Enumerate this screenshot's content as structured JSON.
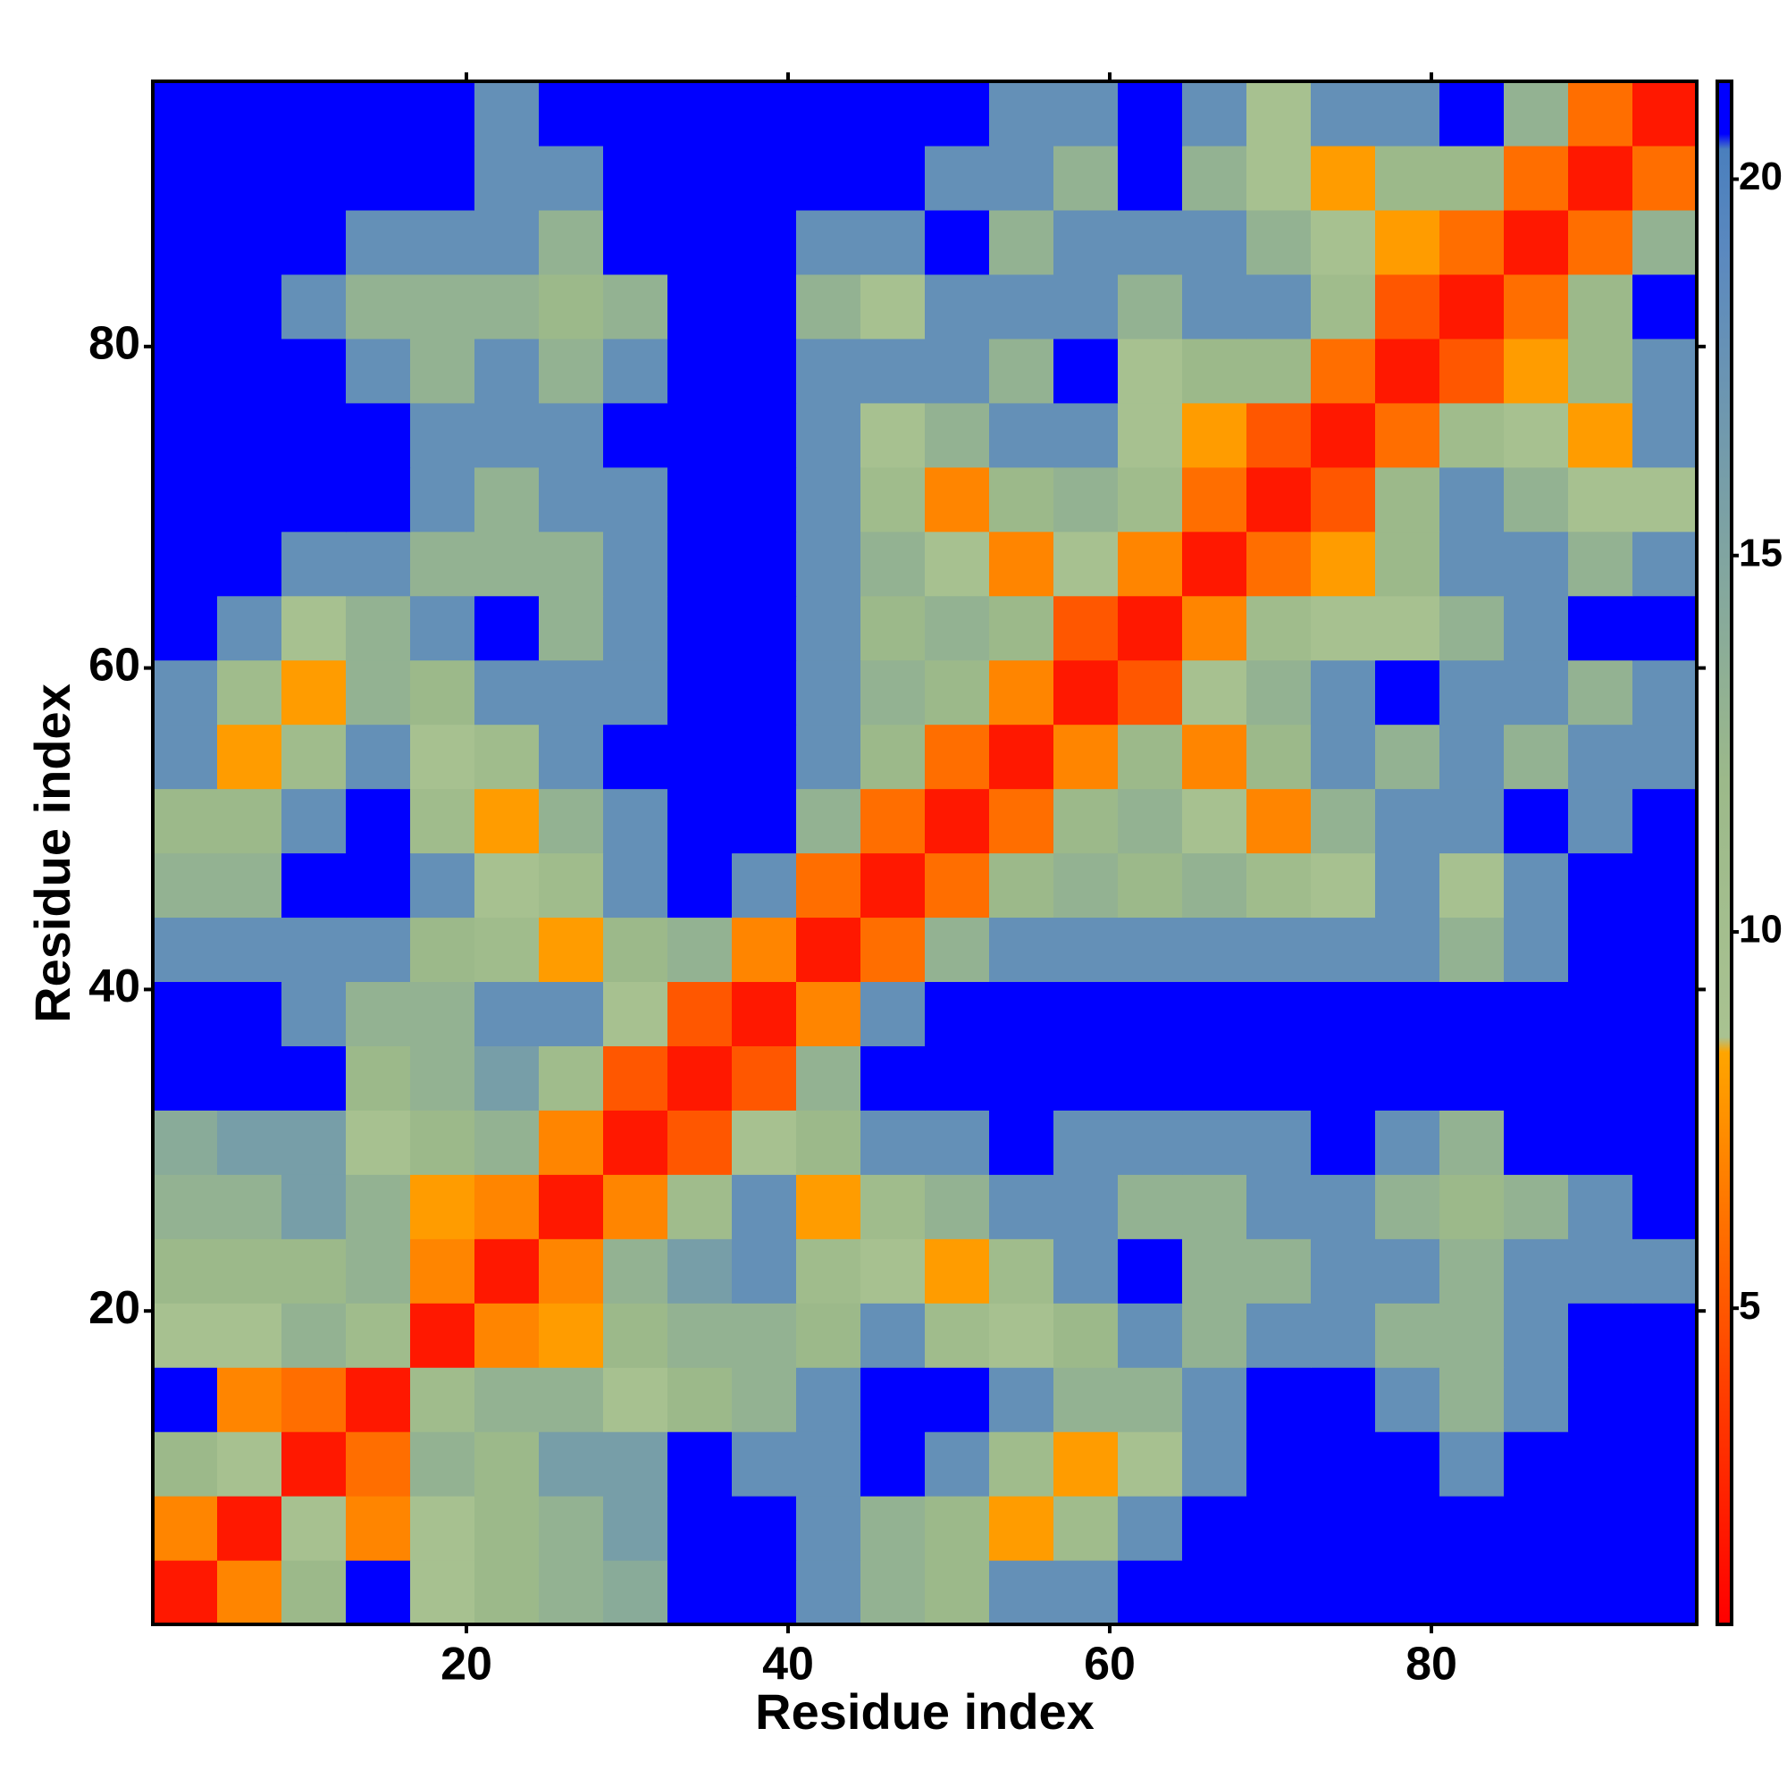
{
  "chart_data": {
    "type": "heatmap",
    "xlabel": "Residue index",
    "ylabel": "Residue index",
    "xlim": [
      0.5,
      96.5
    ],
    "ylim": [
      0.5,
      96.5
    ],
    "xticks": [
      20,
      40,
      60,
      80
    ],
    "yticks": [
      20,
      40,
      60,
      80
    ],
    "xbins": [
      0.5,
      4.5,
      8.5,
      12.5,
      16.5,
      20.5,
      24.5,
      28.5,
      32.5,
      36.5,
      40.5,
      44.5,
      48.5,
      52.5,
      56.5,
      60.5,
      64.5,
      68.5,
      72.5,
      76.5,
      80.5,
      84.5,
      88.5,
      92.5,
      96.5
    ],
    "ybins": [
      0.5,
      4.5,
      8.5,
      12.5,
      16.5,
      20.5,
      24.5,
      28.5,
      32.5,
      36.5,
      40.5,
      44.5,
      48.5,
      52.5,
      56.5,
      60.5,
      64.5,
      68.5,
      72.5,
      76.5,
      80.5,
      84.5,
      88.5,
      92.5,
      96.5
    ],
    "zlim": [
      0.8,
      21.3
    ],
    "zticks": [
      5,
      10,
      15,
      20
    ],
    "colorscale": [
      [
        0.8,
        "#ff0000"
      ],
      [
        4,
        "#ff4000"
      ],
      [
        8.4,
        "#ffa500"
      ],
      [
        8.6,
        "#a9c291"
      ],
      [
        12,
        "#9cb98a"
      ],
      [
        19,
        "#5b89bf"
      ],
      [
        20.4,
        "#4a7fbd"
      ],
      [
        20.6,
        "#0000ff"
      ],
      [
        21.3,
        "#0000ff"
      ]
    ],
    "z": [
      [
        2,
        7,
        12,
        21,
        9,
        12,
        13,
        14,
        21,
        21,
        18,
        13,
        12,
        18,
        18,
        21,
        21,
        21,
        21,
        21,
        21,
        21,
        21,
        21
      ],
      [
        7,
        2,
        9,
        7,
        9,
        12,
        13,
        16,
        21,
        21,
        18,
        13,
        12,
        8,
        11,
        18,
        21,
        21,
        21,
        21,
        21,
        21,
        21,
        21
      ],
      [
        12,
        9,
        2,
        6,
        13,
        12,
        16,
        16,
        21,
        18,
        18,
        21,
        18,
        11,
        8,
        9,
        18,
        21,
        21,
        21,
        18,
        21,
        21,
        21
      ],
      [
        21,
        7,
        6,
        2,
        11,
        13,
        13,
        9,
        12,
        13,
        18,
        21,
        21,
        18,
        13,
        13,
        18,
        21,
        21,
        18,
        13,
        18,
        21,
        21
      ],
      [
        9,
        9,
        13,
        11,
        2,
        7,
        8,
        12,
        13,
        13,
        12,
        18,
        11,
        9,
        12,
        18,
        13,
        18,
        18,
        13,
        13,
        18,
        21,
        21
      ],
      [
        12,
        12,
        12,
        13,
        7,
        2,
        7,
        13,
        16,
        18,
        11,
        9,
        8,
        11,
        18,
        21,
        13,
        13,
        18,
        18,
        13,
        18,
        18,
        18
      ],
      [
        13,
        13,
        16,
        13,
        8,
        7,
        2,
        7,
        11,
        18,
        8,
        11,
        13,
        18,
        18,
        13,
        13,
        18,
        18,
        13,
        12,
        13,
        18,
        21
      ],
      [
        14,
        16,
        16,
        9,
        12,
        13,
        7,
        2,
        5,
        9,
        12,
        18,
        18,
        21,
        18,
        18,
        18,
        18,
        21,
        18,
        13,
        21,
        21,
        21
      ],
      [
        21,
        21,
        21,
        12,
        13,
        16,
        11,
        5,
        2,
        5,
        13,
        21,
        21,
        21,
        21,
        21,
        21,
        21,
        21,
        21,
        21,
        21,
        21,
        21
      ],
      [
        21,
        21,
        18,
        13,
        13,
        18,
        18,
        9,
        5,
        2,
        7,
        18,
        21,
        21,
        21,
        21,
        21,
        21,
        21,
        21,
        21,
        21,
        21,
        21
      ],
      [
        18,
        18,
        18,
        18,
        12,
        11,
        8,
        12,
        13,
        7,
        2,
        6,
        13,
        18,
        18,
        18,
        18,
        18,
        18,
        18,
        13,
        18,
        21,
        21
      ],
      [
        13,
        13,
        21,
        21,
        18,
        9,
        11,
        18,
        21,
        18,
        6,
        2,
        6,
        12,
        13,
        12,
        13,
        11,
        9,
        18,
        9,
        18,
        21,
        21
      ],
      [
        12,
        12,
        18,
        21,
        11,
        8,
        13,
        18,
        21,
        21,
        13,
        6,
        2,
        6,
        12,
        13,
        9,
        7,
        13,
        18,
        18,
        21,
        18,
        21
      ],
      [
        18,
        8,
        11,
        18,
        9,
        11,
        18,
        21,
        21,
        21,
        18,
        12,
        6,
        2,
        7,
        12,
        7,
        12,
        18,
        13,
        18,
        13,
        18,
        18
      ],
      [
        18,
        11,
        8,
        13,
        12,
        18,
        18,
        18,
        21,
        21,
        18,
        13,
        12,
        7,
        2,
        5,
        9,
        13,
        18,
        21,
        18,
        18,
        13,
        18
      ],
      [
        21,
        18,
        9,
        13,
        18,
        21,
        13,
        18,
        21,
        21,
        18,
        12,
        13,
        12,
        5,
        2,
        7,
        11,
        9,
        9,
        13,
        18,
        21,
        21
      ],
      [
        21,
        21,
        18,
        18,
        13,
        13,
        13,
        18,
        21,
        21,
        18,
        13,
        9,
        7,
        9,
        7,
        2,
        6,
        8,
        12,
        18,
        18,
        13,
        18
      ],
      [
        21,
        21,
        21,
        21,
        18,
        13,
        18,
        18,
        21,
        21,
        18,
        11,
        7,
        12,
        13,
        11,
        6,
        2,
        5,
        12,
        18,
        13,
        9,
        9
      ],
      [
        21,
        21,
        21,
        21,
        18,
        18,
        18,
        21,
        21,
        21,
        18,
        9,
        13,
        18,
        18,
        9,
        8,
        5,
        2,
        6,
        11,
        9,
        8,
        18
      ],
      [
        21,
        21,
        21,
        18,
        13,
        18,
        13,
        18,
        21,
        21,
        18,
        18,
        18,
        13,
        21,
        9,
        12,
        12,
        6,
        2,
        5,
        8,
        12,
        18
      ],
      [
        21,
        21,
        18,
        13,
        13,
        13,
        12,
        13,
        21,
        21,
        13,
        9,
        18,
        18,
        18,
        13,
        18,
        18,
        11,
        5,
        2,
        6,
        12,
        21
      ],
      [
        21,
        21,
        21,
        18,
        18,
        18,
        13,
        21,
        21,
        21,
        18,
        18,
        21,
        13,
        18,
        18,
        18,
        13,
        9,
        8,
        6,
        2,
        6,
        13
      ],
      [
        21,
        21,
        21,
        21,
        21,
        18,
        18,
        21,
        21,
        21,
        21,
        21,
        18,
        18,
        13,
        21,
        13,
        9,
        8,
        12,
        12,
        6,
        2,
        6
      ],
      [
        21,
        21,
        21,
        21,
        21,
        18,
        21,
        21,
        21,
        21,
        21,
        21,
        21,
        18,
        18,
        21,
        18,
        9,
        18,
        18,
        21,
        13,
        6,
        2
      ]
    ]
  }
}
